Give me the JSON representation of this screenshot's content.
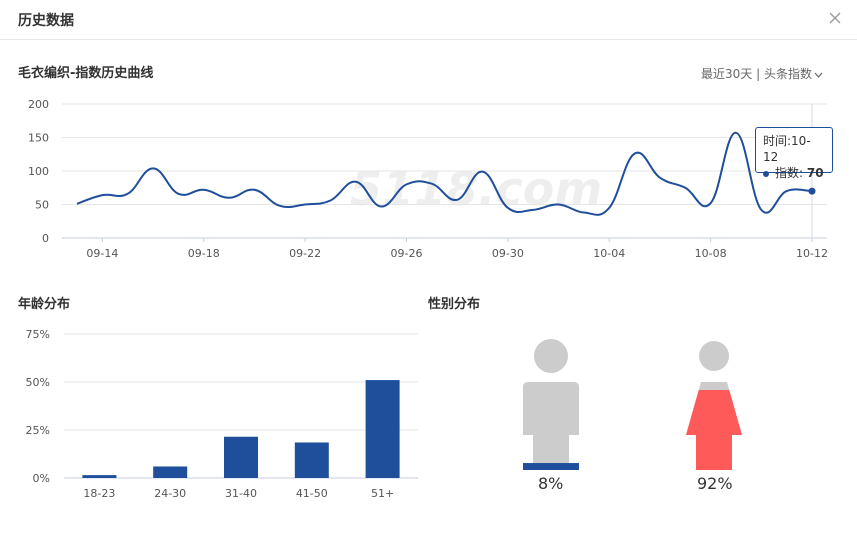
{
  "header": {
    "title": "历史数据",
    "close_icon": "close-icon"
  },
  "line_section": {
    "title": "毛衣编织-指数历史曲线",
    "range_label": "最近30天 | 头条指数",
    "range_icon": "chevron-down-icon",
    "watermark": "5118.com"
  },
  "tooltip": {
    "time_label": "时间:",
    "time_value": "10-12",
    "index_label": "指数:",
    "index_value": "70"
  },
  "age_section": {
    "title": "年龄分布"
  },
  "gender_section": {
    "title": "性别分布",
    "male_pct": "8%",
    "female_pct": "92%",
    "male_fill": 0.08,
    "female_fill": 0.92
  },
  "colors": {
    "primary": "#1f4e9b",
    "female": "#ff5a5a",
    "neutral": "#cccccc"
  },
  "chart_data": [
    {
      "type": "line",
      "title": "毛衣编织-指数历史曲线",
      "x": [
        "09-13",
        "09-14",
        "09-15",
        "09-16",
        "09-17",
        "09-18",
        "09-19",
        "09-20",
        "09-21",
        "09-22",
        "09-23",
        "09-24",
        "09-25",
        "09-26",
        "09-27",
        "09-28",
        "09-29",
        "09-30",
        "10-01",
        "10-02",
        "10-03",
        "10-04",
        "10-05",
        "10-06",
        "10-07",
        "10-08",
        "10-09",
        "10-10",
        "10-11",
        "10-12"
      ],
      "xticks": [
        "09-14",
        "09-18",
        "09-22",
        "09-26",
        "09-30",
        "10-04",
        "10-08",
        "10-12"
      ],
      "values": [
        51,
        64,
        66,
        104,
        66,
        72,
        60,
        72,
        48,
        50,
        56,
        84,
        47,
        80,
        81,
        57,
        99,
        45,
        42,
        50,
        38,
        45,
        126,
        90,
        75,
        52,
        157,
        42,
        70,
        70
      ],
      "yticks": [
        "0",
        "50",
        "100",
        "150",
        "200"
      ],
      "ylim": [
        0,
        200
      ],
      "grid": true
    },
    {
      "type": "bar",
      "categories": [
        "18-23",
        "24-30",
        "31-40",
        "41-50",
        "51+"
      ],
      "values": [
        1.5,
        6,
        21.5,
        18.5,
        51
      ],
      "yticks": [
        "0%",
        "25%",
        "50%",
        "75%"
      ],
      "ylim": [
        0,
        75
      ],
      "grid": true
    }
  ]
}
